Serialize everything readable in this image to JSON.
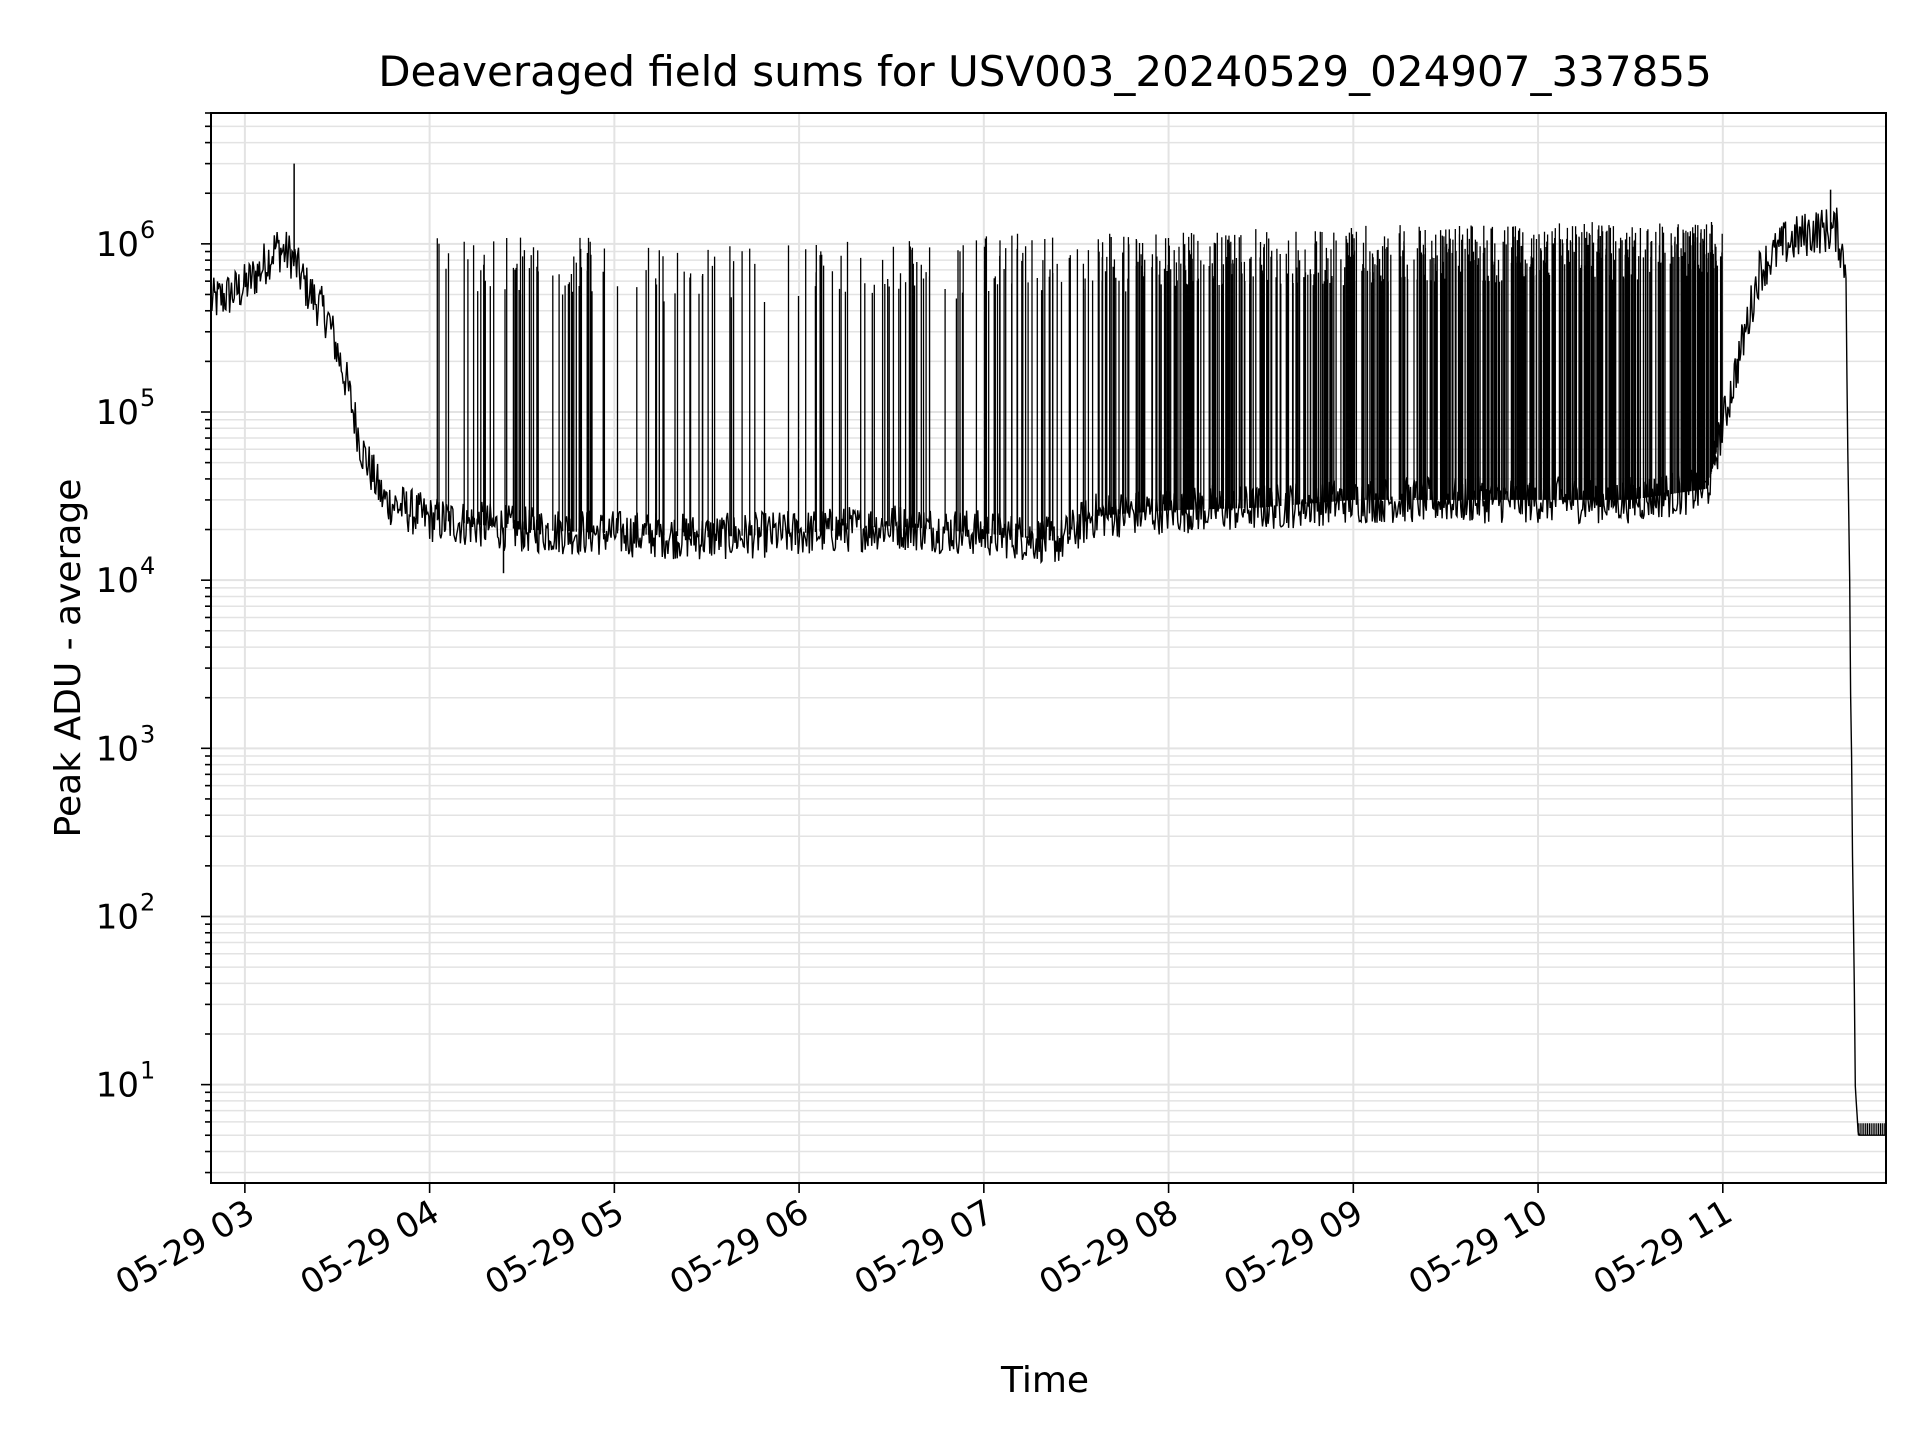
{
  "chart_data": {
    "type": "line",
    "title": "Deaveraged field sums for USV003_20240529_024907_337855",
    "xlabel": "Time",
    "ylabel": "Peak ADU - average",
    "yscale": "log",
    "ylim": [
      2.6,
      6000000
    ],
    "xlim": [
      "2024-05-29 02:49",
      "2024-05-29 11:53"
    ],
    "grid": true,
    "line_color": "#000000",
    "x_ticks": [
      {
        "time": "2024-05-29 03:00",
        "label": "05-29 03"
      },
      {
        "time": "2024-05-29 04:00",
        "label": "05-29 04"
      },
      {
        "time": "2024-05-29 05:00",
        "label": "05-29 05"
      },
      {
        "time": "2024-05-29 06:00",
        "label": "05-29 06"
      },
      {
        "time": "2024-05-29 07:00",
        "label": "05-29 07"
      },
      {
        "time": "2024-05-29 08:00",
        "label": "05-29 08"
      },
      {
        "time": "2024-05-29 09:00",
        "label": "05-29 09"
      },
      {
        "time": "2024-05-29 10:00",
        "label": "05-29 10"
      },
      {
        "time": "2024-05-29 11:00",
        "label": "05-29 11"
      }
    ],
    "y_ticks": [
      {
        "value": 10,
        "base": "10",
        "exp": "1"
      },
      {
        "value": 100,
        "base": "10",
        "exp": "2"
      },
      {
        "value": 1000,
        "base": "10",
        "exp": "3"
      },
      {
        "value": 10000,
        "base": "10",
        "exp": "4"
      },
      {
        "value": 100000,
        "base": "10",
        "exp": "5"
      },
      {
        "value": 1000000,
        "base": "10",
        "exp": "6"
      }
    ],
    "series": [
      {
        "baseline": [
          {
            "t": "2024-05-29 02:49",
            "v": 450000
          },
          {
            "t": "2024-05-29 02:55",
            "v": 500000
          },
          {
            "t": "2024-05-29 03:00",
            "v": 560000
          },
          {
            "t": "2024-05-29 03:05",
            "v": 700000
          },
          {
            "t": "2024-05-29 03:10",
            "v": 950000
          },
          {
            "t": "2024-05-29 03:15",
            "v": 850000
          },
          {
            "t": "2024-05-29 03:20",
            "v": 550000
          },
          {
            "t": "2024-05-29 03:27",
            "v": 360000
          },
          {
            "t": "2024-05-29 03:33",
            "v": 150000
          },
          {
            "t": "2024-05-29 03:38",
            "v": 60000
          },
          {
            "t": "2024-05-29 03:45",
            "v": 30000
          },
          {
            "t": "2024-05-29 04:00",
            "v": 23000
          },
          {
            "t": "2024-05-29 04:30",
            "v": 20000
          },
          {
            "t": "2024-05-29 05:00",
            "v": 19000
          },
          {
            "t": "2024-05-29 05:30",
            "v": 18000
          },
          {
            "t": "2024-05-29 06:00",
            "v": 19000
          },
          {
            "t": "2024-05-29 06:30",
            "v": 21000
          },
          {
            "t": "2024-05-29 07:00",
            "v": 19000
          },
          {
            "t": "2024-05-29 07:25",
            "v": 17000
          },
          {
            "t": "2024-05-29 07:35",
            "v": 24000
          },
          {
            "t": "2024-05-29 08:00",
            "v": 26000
          },
          {
            "t": "2024-05-29 08:30",
            "v": 27000
          },
          {
            "t": "2024-05-29 09:00",
            "v": 30000
          },
          {
            "t": "2024-05-29 09:30",
            "v": 30000
          },
          {
            "t": "2024-05-29 10:00",
            "v": 30000
          },
          {
            "t": "2024-05-29 10:30",
            "v": 30000
          },
          {
            "t": "2024-05-29 10:55",
            "v": 35000
          },
          {
            "t": "2024-05-29 11:05",
            "v": 200000
          },
          {
            "t": "2024-05-29 11:12",
            "v": 700000
          },
          {
            "t": "2024-05-29 11:20",
            "v": 1000000
          },
          {
            "t": "2024-05-29 11:30",
            "v": 1200000
          },
          {
            "t": "2024-05-29 11:37",
            "v": 1200000
          },
          {
            "t": "2024-05-29 11:40",
            "v": 700000
          },
          {
            "t": "2024-05-29 11:43",
            "v": 10
          },
          {
            "t": "2024-05-29 11:44",
            "v": 5
          },
          {
            "t": "2024-05-29 11:53",
            "v": 5
          }
        ],
        "spike_regions": [
          {
            "start": "2024-05-29 04:00",
            "end": "2024-05-29 05:00",
            "peak": 1100000,
            "count": 55
          },
          {
            "start": "2024-05-29 05:00",
            "end": "2024-05-29 06:00",
            "peak": 1000000,
            "count": 30
          },
          {
            "start": "2024-05-29 06:00",
            "end": "2024-05-29 07:00",
            "peak": 1050000,
            "count": 45
          },
          {
            "start": "2024-05-29 07:00",
            "end": "2024-05-29 08:00",
            "peak": 1150000,
            "count": 90
          },
          {
            "start": "2024-05-29 08:00",
            "end": "2024-05-29 09:00",
            "peak": 1250000,
            "count": 150
          },
          {
            "start": "2024-05-29 09:00",
            "end": "2024-05-29 10:00",
            "peak": 1300000,
            "count": 200
          },
          {
            "start": "2024-05-29 10:00",
            "end": "2024-05-29 11:00",
            "peak": 1350000,
            "count": 220
          }
        ],
        "notable_points": [
          {
            "t": "2024-05-29 03:16",
            "v": 3000000
          },
          {
            "t": "2024-05-29 11:35",
            "v": 2100000
          },
          {
            "t": "2024-05-29 04:24",
            "v": 11000
          }
        ]
      }
    ]
  }
}
